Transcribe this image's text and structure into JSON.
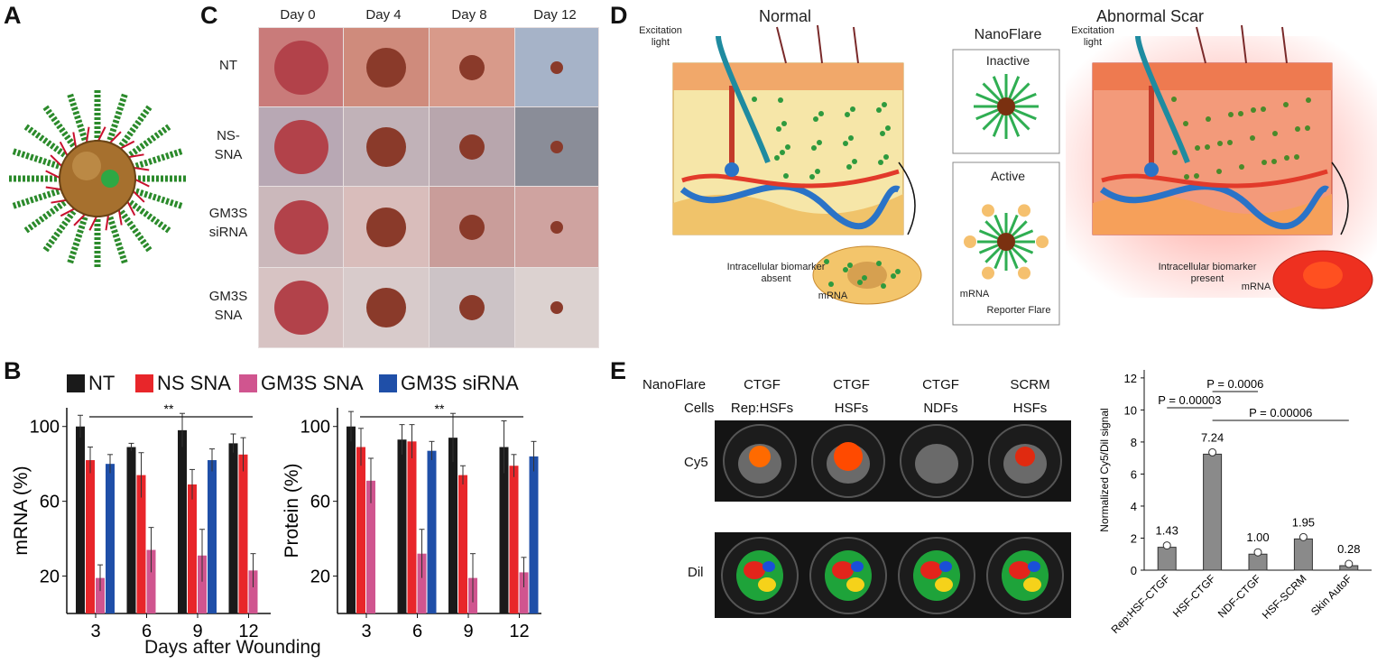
{
  "panels": {
    "a": "A",
    "b": "B",
    "c": "C",
    "d": "D",
    "e": "E"
  },
  "panel_c": {
    "columns": [
      "Day 0",
      "Day 4",
      "Day 8",
      "Day 12"
    ],
    "rows": [
      {
        "label_lines": [
          "NT"
        ]
      },
      {
        "label_lines": [
          "NS-",
          "SNA"
        ]
      },
      {
        "label_lines": [
          "GM3S",
          "siRNA"
        ]
      },
      {
        "label_lines": [
          "GM3S",
          "SNA"
        ]
      }
    ]
  },
  "panel_d": {
    "normal_title": "Normal",
    "abnormal_title": "Abnormal Scar",
    "nanoflare_title": "NanoFlare",
    "excitation_line1": "Excitation",
    "excitation_line2": "light",
    "inactive": "Inactive",
    "active": "Active",
    "mrna": "mRNA",
    "reporter": "Reporter Flare",
    "absent_line1": "Intracellular biomarker",
    "absent_line2": "absent",
    "present_line1": "Intracellular  biomarker",
    "present_line2": "present",
    "mrna_small": "mRNA"
  },
  "panel_e": {
    "nanoflare_label": "NanoFlare",
    "cells_label": "Cells",
    "nanoflares": [
      "CTGF",
      "CTGF",
      "CTGF",
      "SCRM"
    ],
    "cells": [
      "Rep:HSFs",
      "HSFs",
      "NDFs",
      "HSFs"
    ],
    "cy5_label": "Cy5",
    "dil_label": "Dil"
  },
  "colors": {
    "nt": "#1a1a1a",
    "ns_sna": "#e8262a",
    "gm3s_sna": "#d0558f",
    "gm3s_sirna": "#1f4fa8",
    "bar_e": "#8a8a8a"
  },
  "chart_data": [
    {
      "type": "bar",
      "legend": [
        "NT",
        "NS SNA",
        "GM3S SNA",
        "GM3S siRNA"
      ],
      "categories": [
        "3",
        "6",
        "9",
        "12"
      ],
      "xlabel": "Days after Wounding",
      "ylabel": "mRNA (%)",
      "yticks": [
        20,
        60,
        100
      ],
      "ylim": [
        0,
        110
      ],
      "series": [
        {
          "name": "NT",
          "values": [
            100,
            89,
            98,
            91
          ],
          "err": [
            6,
            2,
            9,
            5
          ]
        },
        {
          "name": "NS SNA",
          "values": [
            82,
            74,
            69,
            85
          ],
          "err": [
            7,
            12,
            8,
            9
          ]
        },
        {
          "name": "GM3S SNA",
          "values": [
            19,
            34,
            31,
            23
          ],
          "err": [
            7,
            12,
            14,
            9
          ]
        },
        {
          "name": "GM3S siRNA",
          "values": [
            80,
            0,
            82,
            0
          ],
          "err": [
            5,
            0,
            6,
            0
          ]
        }
      ],
      "significance": "**"
    },
    {
      "type": "bar",
      "categories": [
        "3",
        "6",
        "9",
        "12"
      ],
      "ylabel": "Protein (%)",
      "yticks": [
        20,
        60,
        100
      ],
      "ylim": [
        0,
        110
      ],
      "series": [
        {
          "name": "NT",
          "values": [
            100,
            93,
            94,
            89
          ],
          "err": [
            8,
            8,
            13,
            14
          ]
        },
        {
          "name": "NS SNA",
          "values": [
            89,
            92,
            74,
            79
          ],
          "err": [
            10,
            9,
            5,
            6
          ]
        },
        {
          "name": "GM3S SNA",
          "values": [
            71,
            32,
            19,
            22
          ],
          "err": [
            12,
            13,
            13,
            8
          ]
        },
        {
          "name": "GM3S siRNA",
          "values": [
            0,
            87,
            0,
            84
          ],
          "err": [
            0,
            5,
            0,
            8
          ]
        }
      ],
      "significance": "**"
    },
    {
      "type": "bar",
      "categories": [
        "Rep:HSF-CTGF",
        "HSF-CTGF",
        "NDF-CTGF",
        "HSF-SCRM",
        "Skin AutoF"
      ],
      "values": [
        1.43,
        7.24,
        1.0,
        1.95,
        0.28
      ],
      "value_labels": [
        "1.43",
        "7.24",
        "1.00",
        "1.95",
        "0.28"
      ],
      "ylabel": "Normalized Cy5/Dil signal",
      "yticks": [
        0,
        2,
        4,
        6,
        8,
        10,
        12
      ],
      "ylim": [
        0,
        12.5
      ],
      "pvalues": [
        "P = 0.00003",
        "P = 0.0006",
        "P = 0.00006"
      ]
    }
  ]
}
